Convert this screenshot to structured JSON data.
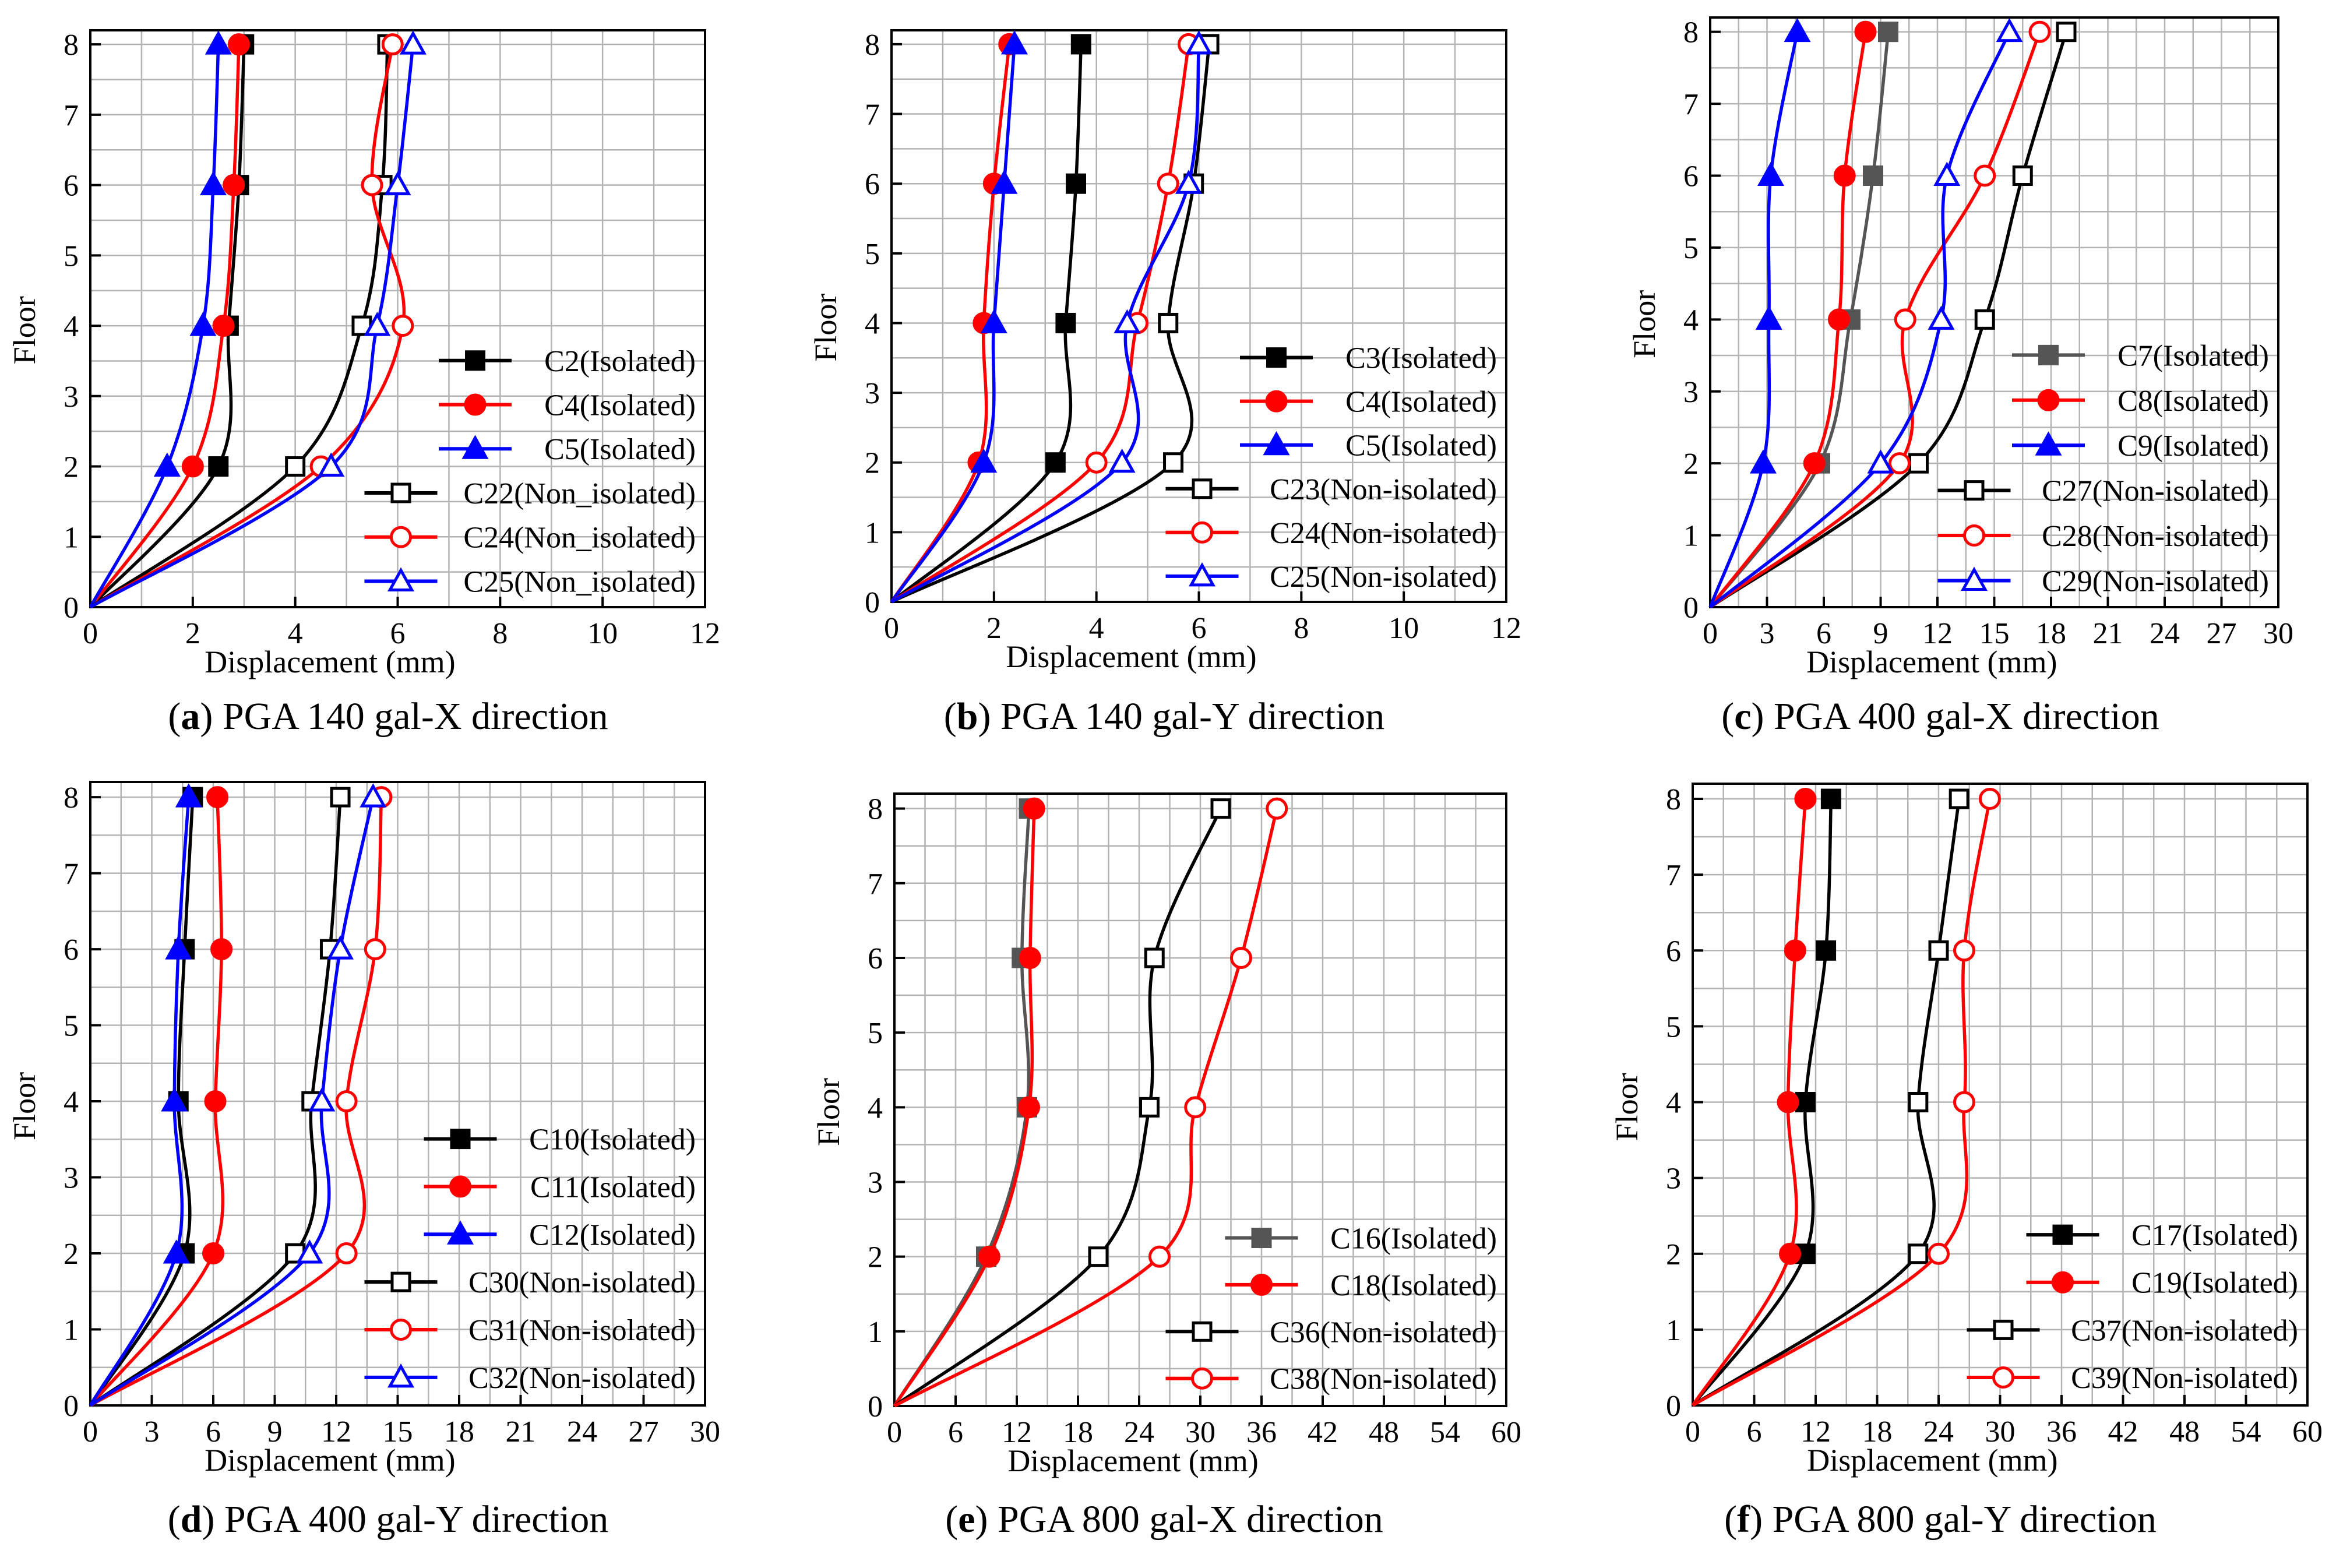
{
  "chart_data": [
    {
      "type": "line",
      "caption_label": "a",
      "caption_text": "PGA 140 gal-X direction",
      "xlabel": "Displacement (mm)",
      "ylabel": "Floor",
      "xlim": [
        0,
        12
      ],
      "xticks": [
        0,
        2,
        4,
        6,
        8,
        10,
        12
      ],
      "ylim": [
        0,
        8.2
      ],
      "yticks": [
        0,
        1,
        2,
        3,
        4,
        5,
        6,
        7,
        8
      ],
      "grid": true,
      "legend_position": "lower-right",
      "series": [
        {
          "name": "C2(Isolated)",
          "color": "#000000",
          "marker": "square",
          "filled": true,
          "x": [
            0,
            2.5,
            2.7,
            2.9,
            3.0
          ],
          "y": [
            0,
            2,
            4,
            6,
            8
          ]
        },
        {
          "name": "C4(Isolated)",
          "color": "#ff0000",
          "marker": "circle",
          "filled": true,
          "x": [
            0,
            2.0,
            2.6,
            2.8,
            2.9
          ],
          "y": [
            0,
            2,
            4,
            6,
            8
          ]
        },
        {
          "name": "C5(Isolated)",
          "color": "#0000ff",
          "marker": "triangle",
          "filled": true,
          "x": [
            0,
            1.5,
            2.2,
            2.4,
            2.5
          ],
          "y": [
            0,
            2,
            4,
            6,
            8
          ]
        },
        {
          "name": "C22(Non_isolated)",
          "color": "#000000",
          "marker": "square",
          "filled": false,
          "x": [
            0,
            4.0,
            5.3,
            5.7,
            5.8
          ],
          "y": [
            0,
            2,
            4,
            6,
            8
          ]
        },
        {
          "name": "C24(Non_isolated)",
          "color": "#ff0000",
          "marker": "circle",
          "filled": false,
          "x": [
            0,
            4.5,
            6.1,
            5.5,
            5.9
          ],
          "y": [
            0,
            2,
            4,
            6,
            8
          ]
        },
        {
          "name": "C25(Non_isolated)",
          "color": "#0000ff",
          "marker": "triangle",
          "filled": false,
          "x": [
            0,
            4.7,
            5.6,
            6.0,
            6.3
          ],
          "y": [
            0,
            2,
            4,
            6,
            8
          ]
        }
      ]
    },
    {
      "type": "line",
      "caption_label": "b",
      "caption_text": "PGA 140 gal-Y direction",
      "xlabel": "Displacement (mm)",
      "ylabel": "Floor",
      "xlim": [
        0,
        12
      ],
      "xticks": [
        0,
        2,
        4,
        6,
        8,
        10,
        12
      ],
      "ylim": [
        0,
        8.2
      ],
      "yticks": [
        0,
        1,
        2,
        3,
        4,
        5,
        6,
        7,
        8
      ],
      "grid": true,
      "legend_position": "lower-right",
      "series": [
        {
          "name": "C3(Isolated)",
          "color": "#000000",
          "marker": "square",
          "filled": true,
          "x": [
            0,
            3.2,
            3.4,
            3.6,
            3.7
          ],
          "y": [
            0,
            2,
            4,
            6,
            8
          ]
        },
        {
          "name": "C4(Isolated)",
          "color": "#ff0000",
          "marker": "circle",
          "filled": true,
          "x": [
            0,
            1.7,
            1.8,
            2.0,
            2.3
          ],
          "y": [
            0,
            2,
            4,
            6,
            8
          ]
        },
        {
          "name": "C5(Isolated)",
          "color": "#0000ff",
          "marker": "triangle",
          "filled": true,
          "x": [
            0,
            1.8,
            2.0,
            2.2,
            2.4
          ],
          "y": [
            0,
            2,
            4,
            6,
            8
          ]
        },
        {
          "name": "C23(Non-isolated)",
          "color": "#000000",
          "marker": "square",
          "filled": false,
          "x": [
            0,
            5.5,
            5.4,
            5.9,
            6.2
          ],
          "y": [
            0,
            2,
            4,
            6,
            8
          ]
        },
        {
          "name": "C24(Non-isolated)",
          "color": "#ff0000",
          "marker": "circle",
          "filled": false,
          "x": [
            0,
            4.0,
            4.8,
            5.4,
            5.8
          ],
          "y": [
            0,
            2,
            4,
            6,
            8
          ]
        },
        {
          "name": "C25(Non-isolated)",
          "color": "#0000ff",
          "marker": "triangle",
          "filled": false,
          "x": [
            0,
            4.5,
            4.6,
            5.8,
            6.0
          ],
          "y": [
            0,
            2,
            4,
            6,
            8
          ]
        }
      ]
    },
    {
      "type": "line",
      "caption_label": "c",
      "caption_text": "PGA 400 gal-X direction",
      "xlabel": "Displacement (mm)",
      "ylabel": "Floor",
      "xlim": [
        0,
        30
      ],
      "xticks": [
        0,
        3,
        6,
        9,
        12,
        15,
        18,
        21,
        24,
        27,
        30
      ],
      "ylim": [
        0,
        8.2
      ],
      "yticks": [
        0,
        1,
        2,
        3,
        4,
        5,
        6,
        7,
        8
      ],
      "grid": true,
      "legend_position": "lower-right",
      "series": [
        {
          "name": "C7(Isolated)",
          "color": "#555555",
          "marker": "square",
          "filled": true,
          "x": [
            0,
            5.8,
            7.4,
            8.6,
            9.4
          ],
          "y": [
            0,
            2,
            4,
            6,
            8
          ]
        },
        {
          "name": "C8(Isolated)",
          "color": "#ff0000",
          "marker": "circle",
          "filled": true,
          "x": [
            0,
            5.5,
            6.8,
            7.1,
            8.2
          ],
          "y": [
            0,
            2,
            4,
            6,
            8
          ]
        },
        {
          "name": "C9(Isolated)",
          "color": "#0000ff",
          "marker": "triangle",
          "filled": true,
          "x": [
            0,
            2.8,
            3.1,
            3.2,
            4.6
          ],
          "y": [
            0,
            2,
            4,
            6,
            8
          ]
        },
        {
          "name": "C27(Non-isolated)",
          "color": "#000000",
          "marker": "square",
          "filled": false,
          "x": [
            0,
            11.0,
            14.5,
            16.5,
            18.8
          ],
          "y": [
            0,
            2,
            4,
            6,
            8
          ]
        },
        {
          "name": "C28(Non-isolated)",
          "color": "#ff0000",
          "marker": "circle",
          "filled": false,
          "x": [
            0,
            10.0,
            10.3,
            14.5,
            17.4
          ],
          "y": [
            0,
            2,
            4,
            6,
            8
          ]
        },
        {
          "name": "C29(Non-isolated)",
          "color": "#0000ff",
          "marker": "triangle",
          "filled": false,
          "x": [
            0,
            9.0,
            12.2,
            12.5,
            15.8
          ],
          "y": [
            0,
            2,
            4,
            6,
            8
          ]
        }
      ]
    },
    {
      "type": "line",
      "caption_label": "d",
      "caption_text": "PGA 400 gal-Y direction",
      "xlabel": "Displacement (mm)",
      "ylabel": "Floor",
      "xlim": [
        0,
        30
      ],
      "xticks": [
        0,
        3,
        6,
        9,
        12,
        15,
        18,
        21,
        24,
        27,
        30
      ],
      "ylim": [
        0,
        8.2
      ],
      "yticks": [
        0,
        1,
        2,
        3,
        4,
        5,
        6,
        7,
        8
      ],
      "grid": true,
      "legend_position": "lower-right",
      "series": [
        {
          "name": "C10(Isolated)",
          "color": "#000000",
          "marker": "square",
          "filled": true,
          "x": [
            0,
            4.6,
            4.3,
            4.6,
            5.0
          ],
          "y": [
            0,
            2,
            4,
            6,
            8
          ]
        },
        {
          "name": "C11(Isolated)",
          "color": "#ff0000",
          "marker": "circle",
          "filled": true,
          "x": [
            0,
            6.0,
            6.1,
            6.4,
            6.2
          ],
          "y": [
            0,
            2,
            4,
            6,
            8
          ]
        },
        {
          "name": "C12(Isolated)",
          "color": "#0000ff",
          "marker": "triangle",
          "filled": true,
          "x": [
            0,
            4.2,
            4.1,
            4.3,
            4.8
          ],
          "y": [
            0,
            2,
            4,
            6,
            8
          ]
        },
        {
          "name": "C30(Non-isolated)",
          "color": "#000000",
          "marker": "square",
          "filled": false,
          "x": [
            0,
            10.0,
            10.8,
            11.7,
            12.2
          ],
          "y": [
            0,
            2,
            4,
            6,
            8
          ]
        },
        {
          "name": "C31(Non-isolated)",
          "color": "#ff0000",
          "marker": "circle",
          "filled": false,
          "x": [
            0,
            12.5,
            12.5,
            13.9,
            14.2
          ],
          "y": [
            0,
            2,
            4,
            6,
            8
          ]
        },
        {
          "name": "C32(Non-isolated)",
          "color": "#0000ff",
          "marker": "triangle",
          "filled": false,
          "x": [
            0,
            10.7,
            11.3,
            12.2,
            13.8
          ],
          "y": [
            0,
            2,
            4,
            6,
            8
          ]
        }
      ]
    },
    {
      "type": "line",
      "caption_label": "e",
      "caption_text": "PGA 800 gal-X direction",
      "xlabel": "Displacement (mm)",
      "ylabel": "Floor",
      "xlim": [
        0,
        60
      ],
      "xticks": [
        0,
        6,
        12,
        18,
        24,
        30,
        36,
        42,
        48,
        54,
        60
      ],
      "ylim": [
        0,
        8.2
      ],
      "yticks": [
        0,
        1,
        2,
        3,
        4,
        5,
        6,
        7,
        8
      ],
      "grid": true,
      "legend_position": "lower-right",
      "series": [
        {
          "name": "C16(Isolated)",
          "color": "#555555",
          "marker": "square",
          "filled": true,
          "x": [
            0,
            9.0,
            13.0,
            12.5,
            13.2
          ],
          "y": [
            0,
            2,
            4,
            6,
            8
          ]
        },
        {
          "name": "C18(Isolated)",
          "color": "#ff0000",
          "marker": "circle",
          "filled": true,
          "x": [
            0,
            9.3,
            13.2,
            13.3,
            13.7
          ],
          "y": [
            0,
            2,
            4,
            6,
            8
          ]
        },
        {
          "name": "C36(Non-isolated)",
          "color": "#000000",
          "marker": "square",
          "filled": false,
          "x": [
            0,
            20.0,
            25.0,
            25.5,
            32.0
          ],
          "y": [
            0,
            2,
            4,
            6,
            8
          ]
        },
        {
          "name": "C38(Non-isolated)",
          "color": "#ff0000",
          "marker": "circle",
          "filled": false,
          "x": [
            0,
            26.0,
            29.5,
            34.0,
            37.5
          ],
          "y": [
            0,
            2,
            4,
            6,
            8
          ]
        }
      ]
    },
    {
      "type": "line",
      "caption_label": "f",
      "caption_text": "PGA 800 gal-Y direction",
      "xlabel": "Displacement (mm)",
      "ylabel": "Floor",
      "xlim": [
        0,
        60
      ],
      "xticks": [
        0,
        6,
        12,
        18,
        24,
        30,
        36,
        42,
        48,
        54,
        60
      ],
      "ylim": [
        0,
        8.2
      ],
      "yticks": [
        0,
        1,
        2,
        3,
        4,
        5,
        6,
        7,
        8
      ],
      "grid": true,
      "legend_position": "lower-right",
      "series": [
        {
          "name": "C17(Isolated)",
          "color": "#000000",
          "marker": "square",
          "filled": true,
          "x": [
            0,
            11.0,
            11.0,
            13.0,
            13.5
          ],
          "y": [
            0,
            2,
            4,
            6,
            8
          ]
        },
        {
          "name": "C19(Isolated)",
          "color": "#ff0000",
          "marker": "circle",
          "filled": true,
          "x": [
            0,
            9.5,
            9.3,
            10.0,
            11.0
          ],
          "y": [
            0,
            2,
            4,
            6,
            8
          ]
        },
        {
          "name": "C37(Non-isolated)",
          "color": "#000000",
          "marker": "square",
          "filled": false,
          "x": [
            0,
            22.0,
            22.0,
            24.0,
            26.0
          ],
          "y": [
            0,
            2,
            4,
            6,
            8
          ]
        },
        {
          "name": "C39(Non-isolated)",
          "color": "#ff0000",
          "marker": "circle",
          "filled": false,
          "x": [
            0,
            24.0,
            26.5,
            26.5,
            29.0
          ],
          "y": [
            0,
            2,
            4,
            6,
            8
          ]
        }
      ]
    }
  ]
}
